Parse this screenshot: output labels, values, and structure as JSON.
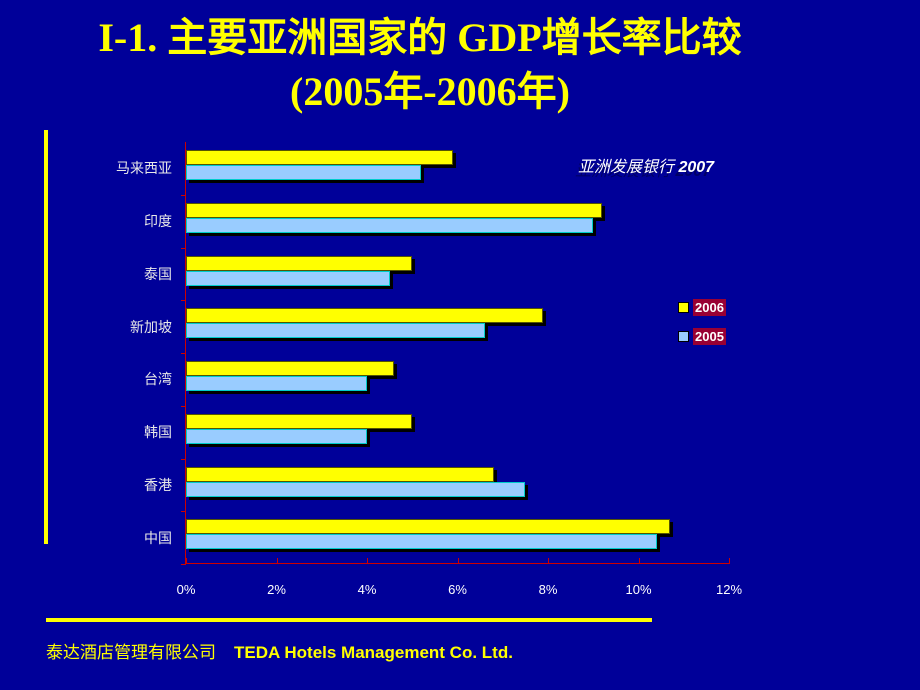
{
  "header": {
    "title_line1": "I-1. 主要亚洲国家的 GDP增长率比较",
    "title_line2": "(2005年-2006年)"
  },
  "source_note": {
    "text": "亚洲发展银行",
    "year": "2007"
  },
  "legend": [
    {
      "label": "2006",
      "color": "#ffff00"
    },
    {
      "label": "2005",
      "color": "#99ccff"
    }
  ],
  "footer": {
    "cn": "泰达酒店管理有限公司",
    "en": "TEDA Hotels Management Co. Ltd."
  },
  "colors": {
    "background": "#000099",
    "accent": "#ffff00",
    "series_2006": "#ffff00",
    "series_2005": "#99ccff",
    "legend_label_bg": "#990033",
    "axis": "#cc0000"
  },
  "chart_data": {
    "type": "bar",
    "orientation": "horizontal",
    "title": "I-1. 主要亚洲国家的 GDP增长率比较 (2005年-2006年)",
    "subtitle": "亚洲发展银行 2007",
    "xlabel": "",
    "ylabel": "",
    "categories": [
      "马来西亚",
      "印度",
      "泰国",
      "新加坡",
      "台湾",
      "韩国",
      "香港",
      "中国"
    ],
    "series": [
      {
        "name": "2006",
        "values": [
          5.9,
          9.2,
          5.0,
          7.9,
          4.6,
          5.0,
          6.8,
          10.7
        ]
      },
      {
        "name": "2005",
        "values": [
          5.2,
          9.0,
          4.5,
          6.6,
          4.0,
          4.0,
          7.5,
          10.4
        ]
      }
    ],
    "xticks": [
      "0%",
      "2%",
      "4%",
      "6%",
      "8%",
      "10%",
      "12%"
    ],
    "xlim": [
      0,
      12
    ],
    "unit": "%",
    "grid": false,
    "legend_position": "right"
  }
}
